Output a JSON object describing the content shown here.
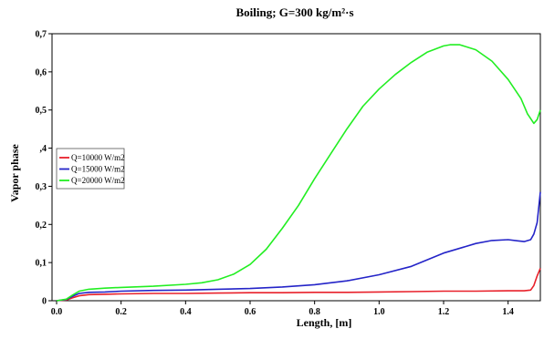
{
  "chart_data": {
    "type": "line",
    "title": "Boiling; G=300 kg/m²·s",
    "xlabel": "Length, [m]",
    "ylabel": "Vapor phase",
    "xlim": [
      0.0,
      1.5
    ],
    "ylim": [
      0.0,
      0.7
    ],
    "x_ticks": [
      "0.0",
      "0.2",
      "0.4",
      "0.6",
      "0.8",
      "1.0",
      "1.2",
      "1.4"
    ],
    "y_ticks": [
      "0",
      "0,1",
      "0,2",
      "0,3",
      ",4",
      "0,5",
      "0,6",
      "0,7"
    ],
    "legend_position": "left-middle",
    "grid": false,
    "series": [
      {
        "name": "Q=10000 W/m2",
        "color": "#e8202a",
        "points": [
          [
            0.0,
            0.0
          ],
          [
            0.03,
            0.002
          ],
          [
            0.05,
            0.008
          ],
          [
            0.07,
            0.013
          ],
          [
            0.1,
            0.016
          ],
          [
            0.15,
            0.017
          ],
          [
            0.2,
            0.018
          ],
          [
            0.3,
            0.019
          ],
          [
            0.4,
            0.019
          ],
          [
            0.5,
            0.02
          ],
          [
            0.6,
            0.021
          ],
          [
            0.7,
            0.021
          ],
          [
            0.8,
            0.022
          ],
          [
            0.9,
            0.022
          ],
          [
            1.0,
            0.023
          ],
          [
            1.1,
            0.024
          ],
          [
            1.2,
            0.025
          ],
          [
            1.3,
            0.025
          ],
          [
            1.4,
            0.026
          ],
          [
            1.45,
            0.026
          ],
          [
            1.47,
            0.028
          ],
          [
            1.48,
            0.04
          ],
          [
            1.49,
            0.065
          ],
          [
            1.5,
            0.085
          ]
        ]
      },
      {
        "name": "Q=15000 W/m2",
        "color": "#2424c8",
        "points": [
          [
            0.0,
            0.0
          ],
          [
            0.03,
            0.003
          ],
          [
            0.05,
            0.012
          ],
          [
            0.07,
            0.019
          ],
          [
            0.1,
            0.022
          ],
          [
            0.15,
            0.023
          ],
          [
            0.2,
            0.025
          ],
          [
            0.3,
            0.027
          ],
          [
            0.4,
            0.028
          ],
          [
            0.5,
            0.03
          ],
          [
            0.6,
            0.032
          ],
          [
            0.7,
            0.036
          ],
          [
            0.8,
            0.042
          ],
          [
            0.9,
            0.052
          ],
          [
            1.0,
            0.068
          ],
          [
            1.1,
            0.09
          ],
          [
            1.2,
            0.125
          ],
          [
            1.3,
            0.15
          ],
          [
            1.35,
            0.158
          ],
          [
            1.4,
            0.16
          ],
          [
            1.43,
            0.157
          ],
          [
            1.45,
            0.155
          ],
          [
            1.47,
            0.16
          ],
          [
            1.48,
            0.175
          ],
          [
            1.49,
            0.205
          ],
          [
            1.5,
            0.285
          ]
        ]
      },
      {
        "name": "Q=20000 W/m2",
        "color": "#22ee22",
        "points": [
          [
            0.0,
            0.0
          ],
          [
            0.03,
            0.004
          ],
          [
            0.05,
            0.015
          ],
          [
            0.07,
            0.025
          ],
          [
            0.1,
            0.03
          ],
          [
            0.15,
            0.033
          ],
          [
            0.2,
            0.035
          ],
          [
            0.3,
            0.038
          ],
          [
            0.4,
            0.043
          ],
          [
            0.45,
            0.047
          ],
          [
            0.5,
            0.055
          ],
          [
            0.55,
            0.07
          ],
          [
            0.6,
            0.095
          ],
          [
            0.65,
            0.135
          ],
          [
            0.7,
            0.19
          ],
          [
            0.75,
            0.25
          ],
          [
            0.8,
            0.32
          ],
          [
            0.85,
            0.385
          ],
          [
            0.9,
            0.45
          ],
          [
            0.95,
            0.51
          ],
          [
            1.0,
            0.555
          ],
          [
            1.05,
            0.593
          ],
          [
            1.1,
            0.625
          ],
          [
            1.15,
            0.652
          ],
          [
            1.2,
            0.668
          ],
          [
            1.22,
            0.671
          ],
          [
            1.25,
            0.671
          ],
          [
            1.3,
            0.658
          ],
          [
            1.35,
            0.628
          ],
          [
            1.4,
            0.58
          ],
          [
            1.44,
            0.53
          ],
          [
            1.46,
            0.49
          ],
          [
            1.48,
            0.465
          ],
          [
            1.49,
            0.475
          ],
          [
            1.5,
            0.5
          ]
        ]
      }
    ]
  }
}
